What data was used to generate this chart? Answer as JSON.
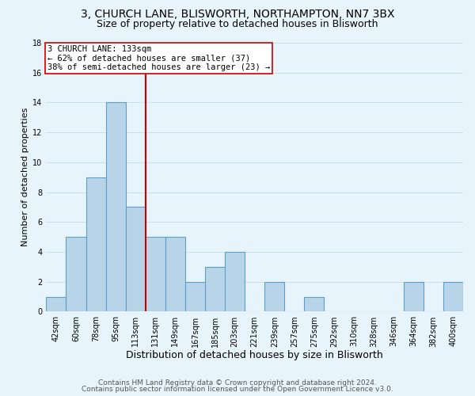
{
  "title1": "3, CHURCH LANE, BLISWORTH, NORTHAMPTON, NN7 3BX",
  "title2": "Size of property relative to detached houses in Blisworth",
  "xlabel": "Distribution of detached houses by size in Blisworth",
  "ylabel": "Number of detached properties",
  "bin_labels": [
    "42sqm",
    "60sqm",
    "78sqm",
    "95sqm",
    "113sqm",
    "131sqm",
    "149sqm",
    "167sqm",
    "185sqm",
    "203sqm",
    "221sqm",
    "239sqm",
    "257sqm",
    "275sqm",
    "292sqm",
    "310sqm",
    "328sqm",
    "346sqm",
    "364sqm",
    "382sqm",
    "400sqm"
  ],
  "bar_values": [
    1,
    5,
    9,
    14,
    7,
    5,
    5,
    2,
    3,
    4,
    0,
    2,
    0,
    1,
    0,
    0,
    0,
    0,
    2,
    0,
    2
  ],
  "bar_color": "#b8d4e8",
  "bar_edge_color": "#5a9ec9",
  "reference_line_color": "#cc0000",
  "annotation_line1": "3 CHURCH LANE: 133sqm",
  "annotation_line2": "← 62% of detached houses are smaller (37)",
  "annotation_line3": "38% of semi-detached houses are larger (23) →",
  "annotation_box_facecolor": "white",
  "annotation_box_edgecolor": "#cc0000",
  "ylim": [
    0,
    18
  ],
  "yticks": [
    0,
    2,
    4,
    6,
    8,
    10,
    12,
    14,
    16,
    18
  ],
  "grid_color": "#c8dff0",
  "background_color": "#e8f4fb",
  "footer_text1": "Contains HM Land Registry data © Crown copyright and database right 2024.",
  "footer_text2": "Contains public sector information licensed under the Open Government Licence v3.0.",
  "title1_fontsize": 10,
  "title2_fontsize": 9,
  "xlabel_fontsize": 9,
  "ylabel_fontsize": 8,
  "tick_fontsize": 7,
  "annotation_fontsize": 7.5,
  "footer_fontsize": 6.5
}
